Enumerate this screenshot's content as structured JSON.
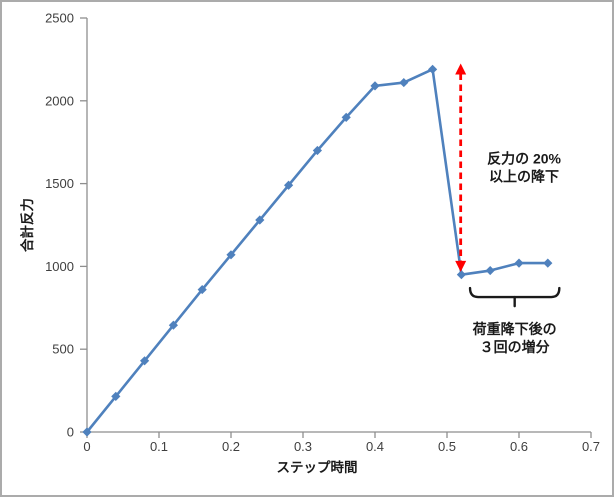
{
  "window": {
    "background": "#FFFFFF",
    "border_color": "#ABABAB"
  },
  "chart_data": {
    "type": "line",
    "title": "",
    "xlabel": "ステップ時間",
    "ylabel": "合計反力",
    "x": [
      0,
      0.04,
      0.08,
      0.12,
      0.16,
      0.2,
      0.24,
      0.28,
      0.32,
      0.36,
      0.4,
      0.44,
      0.48,
      0.52,
      0.56,
      0.6,
      0.64
    ],
    "series": [
      {
        "name": "合計反力",
        "values": [
          0,
          215,
          430,
          645,
          860,
          1070,
          1280,
          1490,
          1700,
          1900,
          2090,
          2110,
          2190,
          950,
          975,
          1020,
          1020
        ],
        "color": "#4F81BD",
        "marker": "diamond"
      }
    ],
    "xlim": [
      0,
      0.7
    ],
    "ylim": [
      0,
      2500
    ],
    "x_ticks": [
      "0",
      "0.1",
      "0.2",
      "0.3",
      "0.4",
      "0.5",
      "0.6",
      "0.7"
    ],
    "y_ticks": [
      "0",
      "500",
      "1000",
      "1500",
      "2000",
      "2500"
    ],
    "grid": false,
    "legend": false,
    "axis_color": "#8E8E8E",
    "tick_label_color": "#3F3F3F",
    "annotations": {
      "drop_arrow": {
        "type": "double-headed-dashed-arrow",
        "color": "#FF0000",
        "x": 0.519,
        "y_top": 2225,
        "y_bottom": 967
      },
      "drop_label": {
        "lines": [
          "反力の 20%",
          "以上の降下"
        ],
        "x": 0.607,
        "y": 1650,
        "color": "#1A1A1A"
      },
      "brace": {
        "type": "horizontal-curly-brace",
        "color": "#1A1A1A",
        "x1": 0.532,
        "x2": 0.656,
        "y": 815,
        "tip_y": 760
      },
      "brace_label": {
        "lines": [
          "荷重降下後の",
          "３回の増分"
        ],
        "x": 0.594,
        "y": 620,
        "color": "#1A1A1A"
      }
    }
  }
}
